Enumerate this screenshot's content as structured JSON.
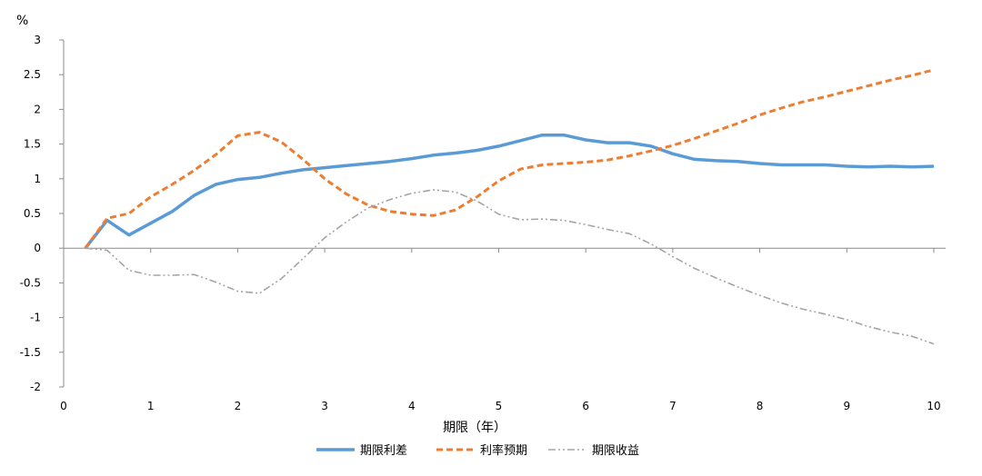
{
  "chart_data": {
    "type": "line",
    "title": "",
    "xlabel": "期限（年）",
    "ylabel": "%",
    "xlim": [
      0,
      10
    ],
    "ylim": [
      -2,
      3
    ],
    "x_ticks": [
      "0",
      "1",
      "2",
      "3",
      "4",
      "5",
      "6",
      "7",
      "8",
      "9",
      "10"
    ],
    "y_ticks": [
      "3",
      "2.5",
      "2",
      "1.5",
      "1",
      "0.5",
      "0",
      "-0.5",
      "-1",
      "-1.5",
      "-2"
    ],
    "grid": false,
    "legend_position": "bottom",
    "series": [
      {
        "name": "期限利差",
        "color": "#5B9BD5",
        "style": "solid",
        "x": [
          0.25,
          0.5,
          0.75,
          1,
          1.25,
          1.5,
          1.75,
          2,
          2.25,
          2.5,
          2.75,
          3,
          3.25,
          3.5,
          3.75,
          4,
          4.25,
          4.5,
          4.75,
          5,
          5.25,
          5.5,
          5.75,
          6,
          6.25,
          6.5,
          6.75,
          7,
          7.25,
          7.5,
          7.75,
          8,
          8.25,
          8.5,
          8.75,
          9,
          9.25,
          9.5,
          9.75,
          10
        ],
        "y": [
          0,
          0.4,
          0.19,
          0.36,
          0.53,
          0.76,
          0.92,
          0.99,
          1.02,
          1.08,
          1.13,
          1.16,
          1.19,
          1.22,
          1.25,
          1.29,
          1.34,
          1.37,
          1.41,
          1.47,
          1.55,
          1.63,
          1.63,
          1.56,
          1.52,
          1.52,
          1.47,
          1.36,
          1.28,
          1.26,
          1.25,
          1.22,
          1.2,
          1.2,
          1.2,
          1.18,
          1.17,
          1.18,
          1.17,
          1.18
        ]
      },
      {
        "name": "利率预期",
        "color": "#ED7D31",
        "style": "dashed",
        "x": [
          0.25,
          0.5,
          0.75,
          1,
          1.25,
          1.5,
          1.75,
          2,
          2.25,
          2.5,
          2.75,
          3,
          3.25,
          3.5,
          3.75,
          4,
          4.25,
          4.5,
          4.75,
          5,
          5.25,
          5.5,
          5.75,
          6,
          6.25,
          6.5,
          6.75,
          7,
          7.25,
          7.5,
          7.75,
          8,
          8.25,
          8.5,
          8.75,
          9,
          9.25,
          9.5,
          9.75,
          10
        ],
        "y": [
          0,
          0.43,
          0.5,
          0.74,
          0.92,
          1.12,
          1.35,
          1.62,
          1.67,
          1.53,
          1.28,
          1.0,
          0.78,
          0.62,
          0.53,
          0.49,
          0.47,
          0.55,
          0.74,
          0.97,
          1.14,
          1.2,
          1.22,
          1.24,
          1.27,
          1.33,
          1.4,
          1.48,
          1.58,
          1.69,
          1.8,
          1.92,
          2.02,
          2.11,
          2.18,
          2.26,
          2.34,
          2.42,
          2.49,
          2.57
        ]
      },
      {
        "name": "期限收益",
        "color": "#A5A5A5",
        "style": "dashdotdot",
        "x": [
          0.25,
          0.5,
          0.75,
          1,
          1.25,
          1.5,
          1.75,
          2,
          2.25,
          2.5,
          2.75,
          3,
          3.25,
          3.5,
          3.75,
          4,
          4.25,
          4.5,
          4.75,
          5,
          5.25,
          5.5,
          5.75,
          6,
          6.25,
          6.5,
          6.75,
          7,
          7.25,
          7.5,
          7.75,
          8,
          8.25,
          8.5,
          8.75,
          9,
          9.25,
          9.5,
          9.75,
          10
        ],
        "y": [
          0,
          -0.03,
          -0.32,
          -0.39,
          -0.39,
          -0.38,
          -0.49,
          -0.62,
          -0.65,
          -0.44,
          -0.15,
          0.15,
          0.38,
          0.58,
          0.7,
          0.79,
          0.84,
          0.81,
          0.68,
          0.49,
          0.41,
          0.42,
          0.4,
          0.34,
          0.27,
          0.21,
          0.06,
          -0.12,
          -0.29,
          -0.43,
          -0.56,
          -0.68,
          -0.79,
          -0.88,
          -0.95,
          -1.03,
          -1.13,
          -1.21,
          -1.27,
          -1.38
        ]
      }
    ]
  }
}
